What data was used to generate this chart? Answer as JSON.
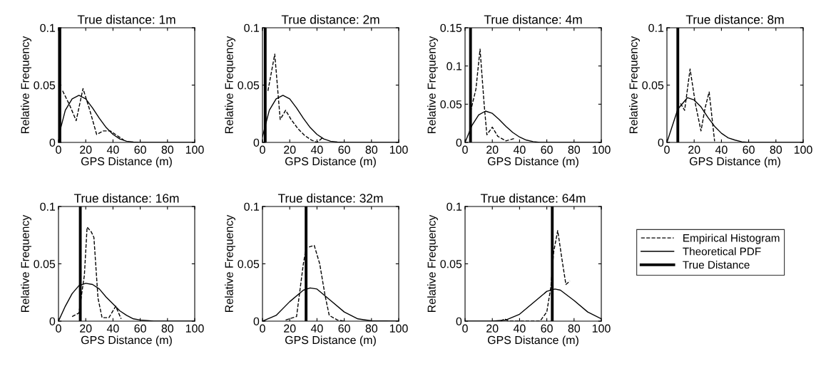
{
  "chart_data": [
    {
      "type": "line",
      "title": "True distance: 1m",
      "xlabel": "GPS Distance (m)",
      "ylabel": "Relative Frequency",
      "xlim": [
        0,
        100
      ],
      "ylim": [
        0,
        0.1
      ],
      "xticks": [
        0,
        20,
        40,
        60,
        80,
        100
      ],
      "yticks": [
        0,
        0.05,
        0.1
      ],
      "legend": false,
      "series": [
        {
          "color": "#000000",
          "line_style": "dashed",
          "x": [
            3,
            8,
            13,
            18,
            23,
            28,
            33,
            38,
            43,
            48
          ],
          "values": [
            0.045,
            0.033,
            0.019,
            0.047,
            0.028,
            0.007,
            0.01,
            0.01,
            0.006,
            0.002
          ]
        },
        {
          "color": "#000000",
          "line_style": "solid",
          "x": [
            0,
            5,
            10,
            15,
            20,
            25,
            30,
            35,
            40,
            45,
            50,
            55,
            60,
            100
          ],
          "values": [
            0.005,
            0.028,
            0.038,
            0.041,
            0.038,
            0.03,
            0.021,
            0.013,
            0.007,
            0.003,
            0.001,
            0.0003,
            0,
            0
          ]
        }
      ],
      "ref_lines": [
        {
          "axis": "x",
          "value": 1,
          "color": "#000000"
        }
      ]
    },
    {
      "type": "line",
      "title": "True distance: 2m",
      "xlabel": "GPS Distance (m)",
      "ylabel": "Relative Frequency",
      "xlim": [
        0,
        100
      ],
      "ylim": [
        0,
        0.1
      ],
      "xticks": [
        0,
        20,
        40,
        60,
        80,
        100
      ],
      "yticks": [
        0,
        0.05,
        0.1
      ],
      "legend": false,
      "series": [
        {
          "color": "#000000",
          "line_style": "dashed",
          "x": [
            4,
            9,
            13,
            17,
            21,
            26,
            31,
            36,
            40,
            44
          ],
          "values": [
            0.045,
            0.077,
            0.02,
            0.028,
            0.02,
            0.012,
            0.006,
            0.002,
            0,
            0.004
          ]
        },
        {
          "color": "#000000",
          "line_style": "solid",
          "x": [
            0,
            5,
            10,
            15,
            20,
            25,
            30,
            35,
            40,
            45,
            50,
            55,
            60,
            100
          ],
          "values": [
            0.005,
            0.028,
            0.038,
            0.041,
            0.038,
            0.03,
            0.021,
            0.013,
            0.007,
            0.003,
            0.001,
            0.0003,
            0,
            0
          ]
        }
      ],
      "ref_lines": [
        {
          "axis": "x",
          "value": 2,
          "color": "#000000"
        }
      ]
    },
    {
      "type": "line",
      "title": "True distance: 4m",
      "xlabel": "GPS Distance (m)",
      "ylabel": "Relative Frequency",
      "xlim": [
        0,
        100
      ],
      "ylim": [
        0,
        0.15
      ],
      "xticks": [
        0,
        20,
        40,
        60,
        80,
        100
      ],
      "yticks": [
        0,
        0.05,
        0.1,
        0.15
      ],
      "legend": false,
      "series": [
        {
          "color": "#000000",
          "line_style": "dashed",
          "x": [
            4,
            8,
            11,
            14,
            16,
            20,
            24,
            30,
            36
          ],
          "values": [
            0.04,
            0.07,
            0.122,
            0.05,
            0.01,
            0.02,
            0.008,
            0.002,
            0.005
          ]
        },
        {
          "color": "#000000",
          "line_style": "solid",
          "x": [
            0,
            5,
            10,
            15,
            20,
            25,
            30,
            35,
            40,
            45,
            50,
            55,
            60,
            100
          ],
          "values": [
            0,
            0.022,
            0.036,
            0.041,
            0.038,
            0.03,
            0.021,
            0.013,
            0.007,
            0.003,
            0.001,
            0,
            0,
            0
          ]
        }
      ],
      "ref_lines": [
        {
          "axis": "x",
          "value": 4,
          "color": "#000000"
        }
      ]
    },
    {
      "type": "line",
      "title": "True distance: 8m",
      "xlabel": "GPS Distance (m)",
      "ylabel": "Relative Frequency",
      "xlim": [
        0,
        100
      ],
      "ylim": [
        0,
        0.1
      ],
      "xticks": [
        0,
        20,
        40,
        60,
        80,
        100
      ],
      "yticks": [
        0,
        0.05,
        0.1
      ],
      "legend": false,
      "series": [
        {
          "color": "#000000",
          "line_style": "dashed",
          "x": [
            10,
            13,
            17,
            21,
            25,
            28,
            31,
            35
          ],
          "values": [
            0.034,
            0.028,
            0.064,
            0.033,
            0.01,
            0.03,
            0.044,
            0.001
          ]
        },
        {
          "color": "#000000",
          "line_style": "solid",
          "x": [
            0,
            8,
            15,
            20,
            25,
            30,
            35,
            40,
            45,
            50,
            55,
            60,
            100
          ],
          "values": [
            0,
            0.029,
            0.039,
            0.037,
            0.031,
            0.022,
            0.014,
            0.008,
            0.004,
            0.002,
            0.0005,
            0,
            0
          ]
        }
      ],
      "ref_lines": [
        {
          "axis": "x",
          "value": 8,
          "color": "#000000"
        }
      ]
    },
    {
      "type": "line",
      "title": "True distance: 16m",
      "xlabel": "GPS Distance (m)",
      "ylabel": "Relative Frequency",
      "xlim": [
        0,
        100
      ],
      "ylim": [
        0,
        0.1
      ],
      "xticks": [
        0,
        20,
        40,
        60,
        80,
        100
      ],
      "yticks": [
        0,
        0.05,
        0.1
      ],
      "legend": false,
      "series": [
        {
          "color": "#000000",
          "line_style": "dashed",
          "x": [
            10,
            15,
            19,
            21,
            24,
            26,
            29,
            32,
            37,
            42,
            46
          ],
          "values": [
            0.004,
            0.007,
            0.04,
            0.082,
            0.078,
            0.073,
            0.02,
            0.003,
            0.003,
            0.013,
            0.002
          ]
        },
        {
          "color": "#000000",
          "line_style": "solid",
          "x": [
            0,
            5,
            10,
            15,
            20,
            25,
            30,
            35,
            40,
            45,
            50,
            55,
            60,
            70,
            100
          ],
          "values": [
            0,
            0.013,
            0.024,
            0.031,
            0.033,
            0.032,
            0.028,
            0.021,
            0.015,
            0.009,
            0.005,
            0.002,
            0.001,
            0,
            0
          ]
        }
      ],
      "ref_lines": [
        {
          "axis": "x",
          "value": 16,
          "color": "#000000"
        }
      ]
    },
    {
      "type": "line",
      "title": "True distance: 32m",
      "xlabel": "GPS Distance (m)",
      "ylabel": "Relative Frequency",
      "xlim": [
        0,
        100
      ],
      "ylim": [
        0,
        0.1
      ],
      "xticks": [
        0,
        20,
        40,
        60,
        80,
        100
      ],
      "yticks": [
        0,
        0.05,
        0.1
      ],
      "legend": false,
      "series": [
        {
          "color": "#000000",
          "line_style": "dashed",
          "x": [
            17,
            25,
            30,
            32,
            38,
            42,
            46,
            49,
            55,
            60
          ],
          "values": [
            0.001,
            0.004,
            0.05,
            0.064,
            0.066,
            0.05,
            0.022,
            0.005,
            0.001,
            0
          ]
        },
        {
          "color": "#000000",
          "line_style": "solid",
          "x": [
            0,
            10,
            20,
            30,
            35,
            40,
            50,
            60,
            70,
            80,
            100
          ],
          "values": [
            0,
            0.005,
            0.017,
            0.027,
            0.029,
            0.028,
            0.018,
            0.008,
            0.002,
            0.0003,
            0
          ]
        }
      ],
      "ref_lines": [
        {
          "axis": "x",
          "value": 32,
          "color": "#000000"
        }
      ]
    },
    {
      "type": "line",
      "title": "True distance: 64m",
      "xlabel": "GPS Distance (m)",
      "ylabel": "Relative Frequency",
      "xlim": [
        0,
        100
      ],
      "ylim": [
        0,
        0.1
      ],
      "xticks": [
        0,
        20,
        40,
        60,
        80,
        100
      ],
      "yticks": [
        0,
        0.05,
        0.1
      ],
      "legend": "right",
      "series": [
        {
          "name": "Empirical Histogram",
          "color": "#000000",
          "line_style": "dashed",
          "x": [
            26,
            29,
            32,
            55,
            60,
            63,
            65,
            68,
            71,
            74,
            77
          ],
          "values": [
            0,
            0.002,
            0,
            0,
            0.008,
            0.03,
            0.06,
            0.079,
            0.055,
            0.032,
            0.035
          ]
        },
        {
          "name": "Theoretical PDF",
          "color": "#000000",
          "line_style": "solid",
          "x": [
            0,
            10,
            20,
            30,
            40,
            50,
            60,
            66,
            70,
            80,
            90,
            100
          ],
          "values": [
            0,
            0,
            0,
            0.001,
            0.006,
            0.016,
            0.026,
            0.028,
            0.027,
            0.018,
            0.008,
            0.002
          ]
        },
        {
          "name": "True Distance",
          "color": "#000000",
          "line_style": "solid",
          "x": [
            64,
            64
          ],
          "values": [
            0,
            0.1
          ]
        }
      ]
    }
  ]
}
